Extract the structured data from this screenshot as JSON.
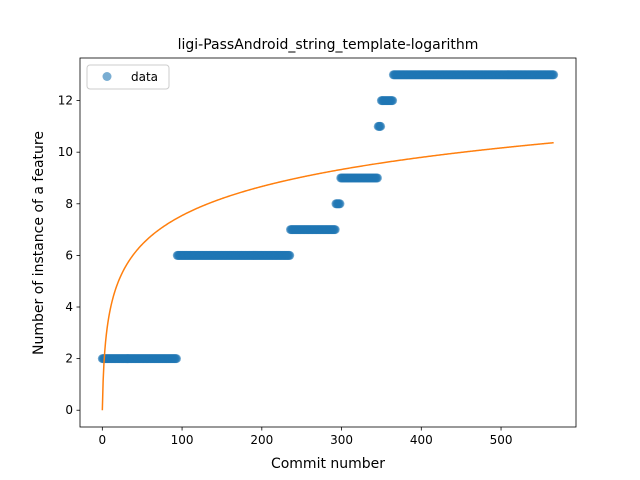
{
  "chart_data": {
    "type": "scatter",
    "title": "ligi-PassAndroid_string_template-logarithm",
    "xlabel": "Commit number",
    "ylabel": "Number of instance of a feature",
    "xlim": [
      -28,
      594
    ],
    "ylim": [
      -0.65,
      13.65
    ],
    "xticks": [
      0,
      100,
      200,
      300,
      400,
      500
    ],
    "yticks": [
      0,
      2,
      4,
      6,
      8,
      10,
      12
    ],
    "grid": false,
    "legend": {
      "placement": "top-left",
      "entries": [
        "data"
      ]
    },
    "colors": {
      "data": "#1f77b4",
      "fit": "#ff7f0e"
    },
    "series": [
      {
        "name": "data",
        "kind": "scatter",
        "segments": [
          {
            "x_start": 0,
            "x_end": 94,
            "y": 2
          },
          {
            "x_start": 94,
            "x_end": 236,
            "y": 6
          },
          {
            "x_start": 236,
            "x_end": 293,
            "y": 7
          },
          {
            "x_start": 293,
            "x_end": 299,
            "y": 8
          },
          {
            "x_start": 299,
            "x_end": 346,
            "y": 9
          },
          {
            "x_start": 346,
            "x_end": 350,
            "y": 11
          },
          {
            "x_start": 350,
            "x_end": 365,
            "y": 12
          },
          {
            "x_start": 365,
            "x_end": 566,
            "y": 13
          }
        ]
      },
      {
        "kind": "line",
        "function": "a*ln(x+1)",
        "a": 1.635,
        "x_range": [
          0,
          566
        ]
      }
    ]
  }
}
